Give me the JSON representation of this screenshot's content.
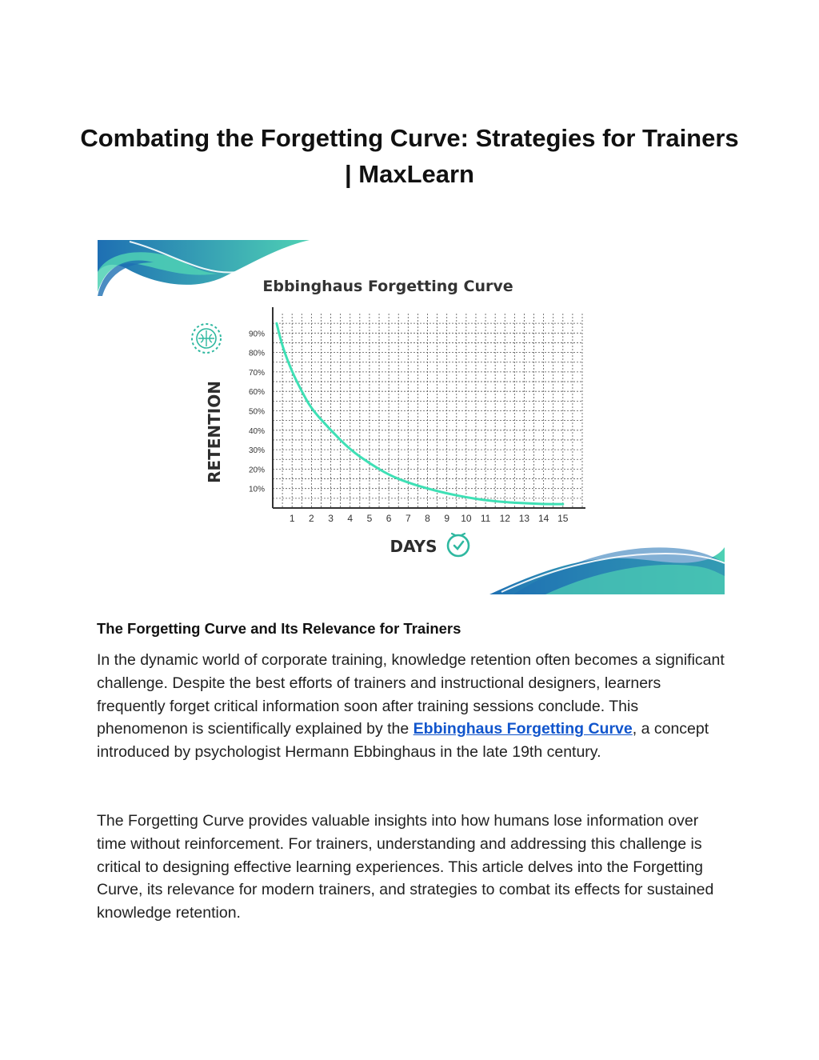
{
  "document": {
    "title": "Combating the Forgetting Curve: Strategies for Trainers | MaxLearn",
    "section_heading": "The Forgetting Curve and Its Relevance for Trainers",
    "paragraph1": {
      "before_link": "In the dynamic world of corporate training, knowledge retention often becomes a significant challenge. Despite the best efforts of trainers and instructional designers, learners frequently forget critical information soon after training sessions conclude. This phenomenon is scientifically explained by the ",
      "link_text": "Ebbinghaus Forgetting Curve",
      "after_link": ", a concept introduced by psychologist Hermann Ebbinghaus in the late 19th century."
    },
    "paragraph2": "The Forgetting Curve provides valuable insights into how humans lose information over time without reinforcement. For trainers, understanding and addressing this challenge is critical to designing effective learning experiences. This article delves into the Forgetting Curve, its relevance for modern trainers, and strategies to combat its effects for sustained knowledge retention."
  },
  "chart_data": {
    "type": "line",
    "title": "Ebbinghaus Forgetting Curve",
    "xlabel": "DAYS",
    "ylabel": "RETENTION",
    "x_ticks": [
      "1",
      "2",
      "3",
      "4",
      "5",
      "6",
      "7",
      "8",
      "9",
      "10",
      "11",
      "12",
      "13",
      "14",
      "15"
    ],
    "y_ticks": [
      "10%",
      "20%",
      "30%",
      "40%",
      "50%",
      "60%",
      "70%",
      "80%",
      "90%"
    ],
    "xlim": [
      0,
      16
    ],
    "ylim": [
      0,
      100
    ],
    "grid": true,
    "colors": {
      "curve": "#3ee0b5",
      "grid": "#555555",
      "axis": "#333333",
      "accent": "#2fb8a0",
      "wave_dark": "#1e6fb3",
      "wave_light": "#4fd1b4"
    },
    "icons": [
      "brain-icon",
      "clock-icon"
    ],
    "series": [
      {
        "x": [
          0.2,
          0.5,
          1,
          1.5,
          2,
          3,
          4,
          5,
          6,
          7,
          8,
          9,
          10,
          11,
          12,
          13,
          14,
          15
        ],
        "values": [
          95,
          83,
          70,
          60,
          51,
          40,
          30,
          23,
          17,
          13,
          10,
          7.5,
          5.5,
          4,
          3,
          2.5,
          2,
          2
        ]
      }
    ]
  }
}
